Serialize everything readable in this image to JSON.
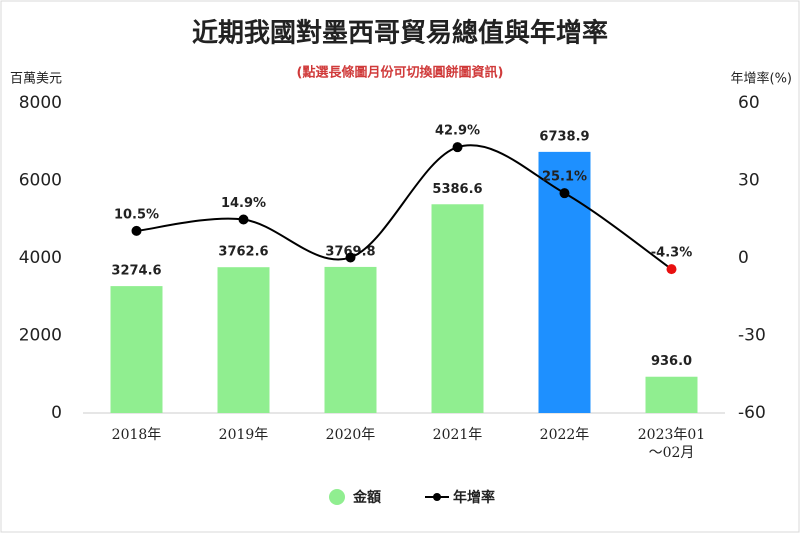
{
  "chart_data": {
    "type": "bar_line",
    "title": "近期我國對墨西哥貿易總值與年增率",
    "subtitle": "(點選長條圖月份可切換圓餅圖資訊)",
    "y_label": "百萬美元",
    "y2_label": "年增率(%)",
    "categories": [
      "2018年",
      "2019年",
      "2020年",
      "2021年",
      "2022年",
      "2023年01～02月"
    ],
    "series": [
      {
        "name": "金額",
        "type": "bar",
        "color": "#90ee90",
        "colors": [
          "#90ee90",
          "#90ee90",
          "#90ee90",
          "#90ee90",
          "#1e90ff",
          "#90ee90"
        ],
        "values": [
          3274.6,
          3762.6,
          3769.8,
          5386.6,
          6738.9,
          936.0
        ],
        "value_labels": [
          "3274.6",
          "3762.6",
          "3769.8",
          "5386.6",
          "6738.9",
          "936.0"
        ]
      },
      {
        "name": "年增率",
        "type": "line",
        "axis": "y2",
        "color": "#000000",
        "point_colors": [
          "#000000",
          "#000000",
          "#000000",
          "#000000",
          "#000000",
          "#e81010"
        ],
        "values": [
          10.5,
          14.9,
          0.2,
          42.9,
          25.1,
          -4.3
        ],
        "value_labels": [
          "10.5%",
          "14.9%",
          null,
          "42.9%",
          "25.1%",
          "-4.3%"
        ]
      }
    ],
    "ylim": [
      0,
      8000
    ],
    "yticks": [
      0,
      2000,
      4000,
      6000,
      8000
    ],
    "y2lim": [
      -60,
      60
    ],
    "y2ticks": [
      -60,
      -30,
      0,
      30,
      60
    ],
    "grid": false
  }
}
